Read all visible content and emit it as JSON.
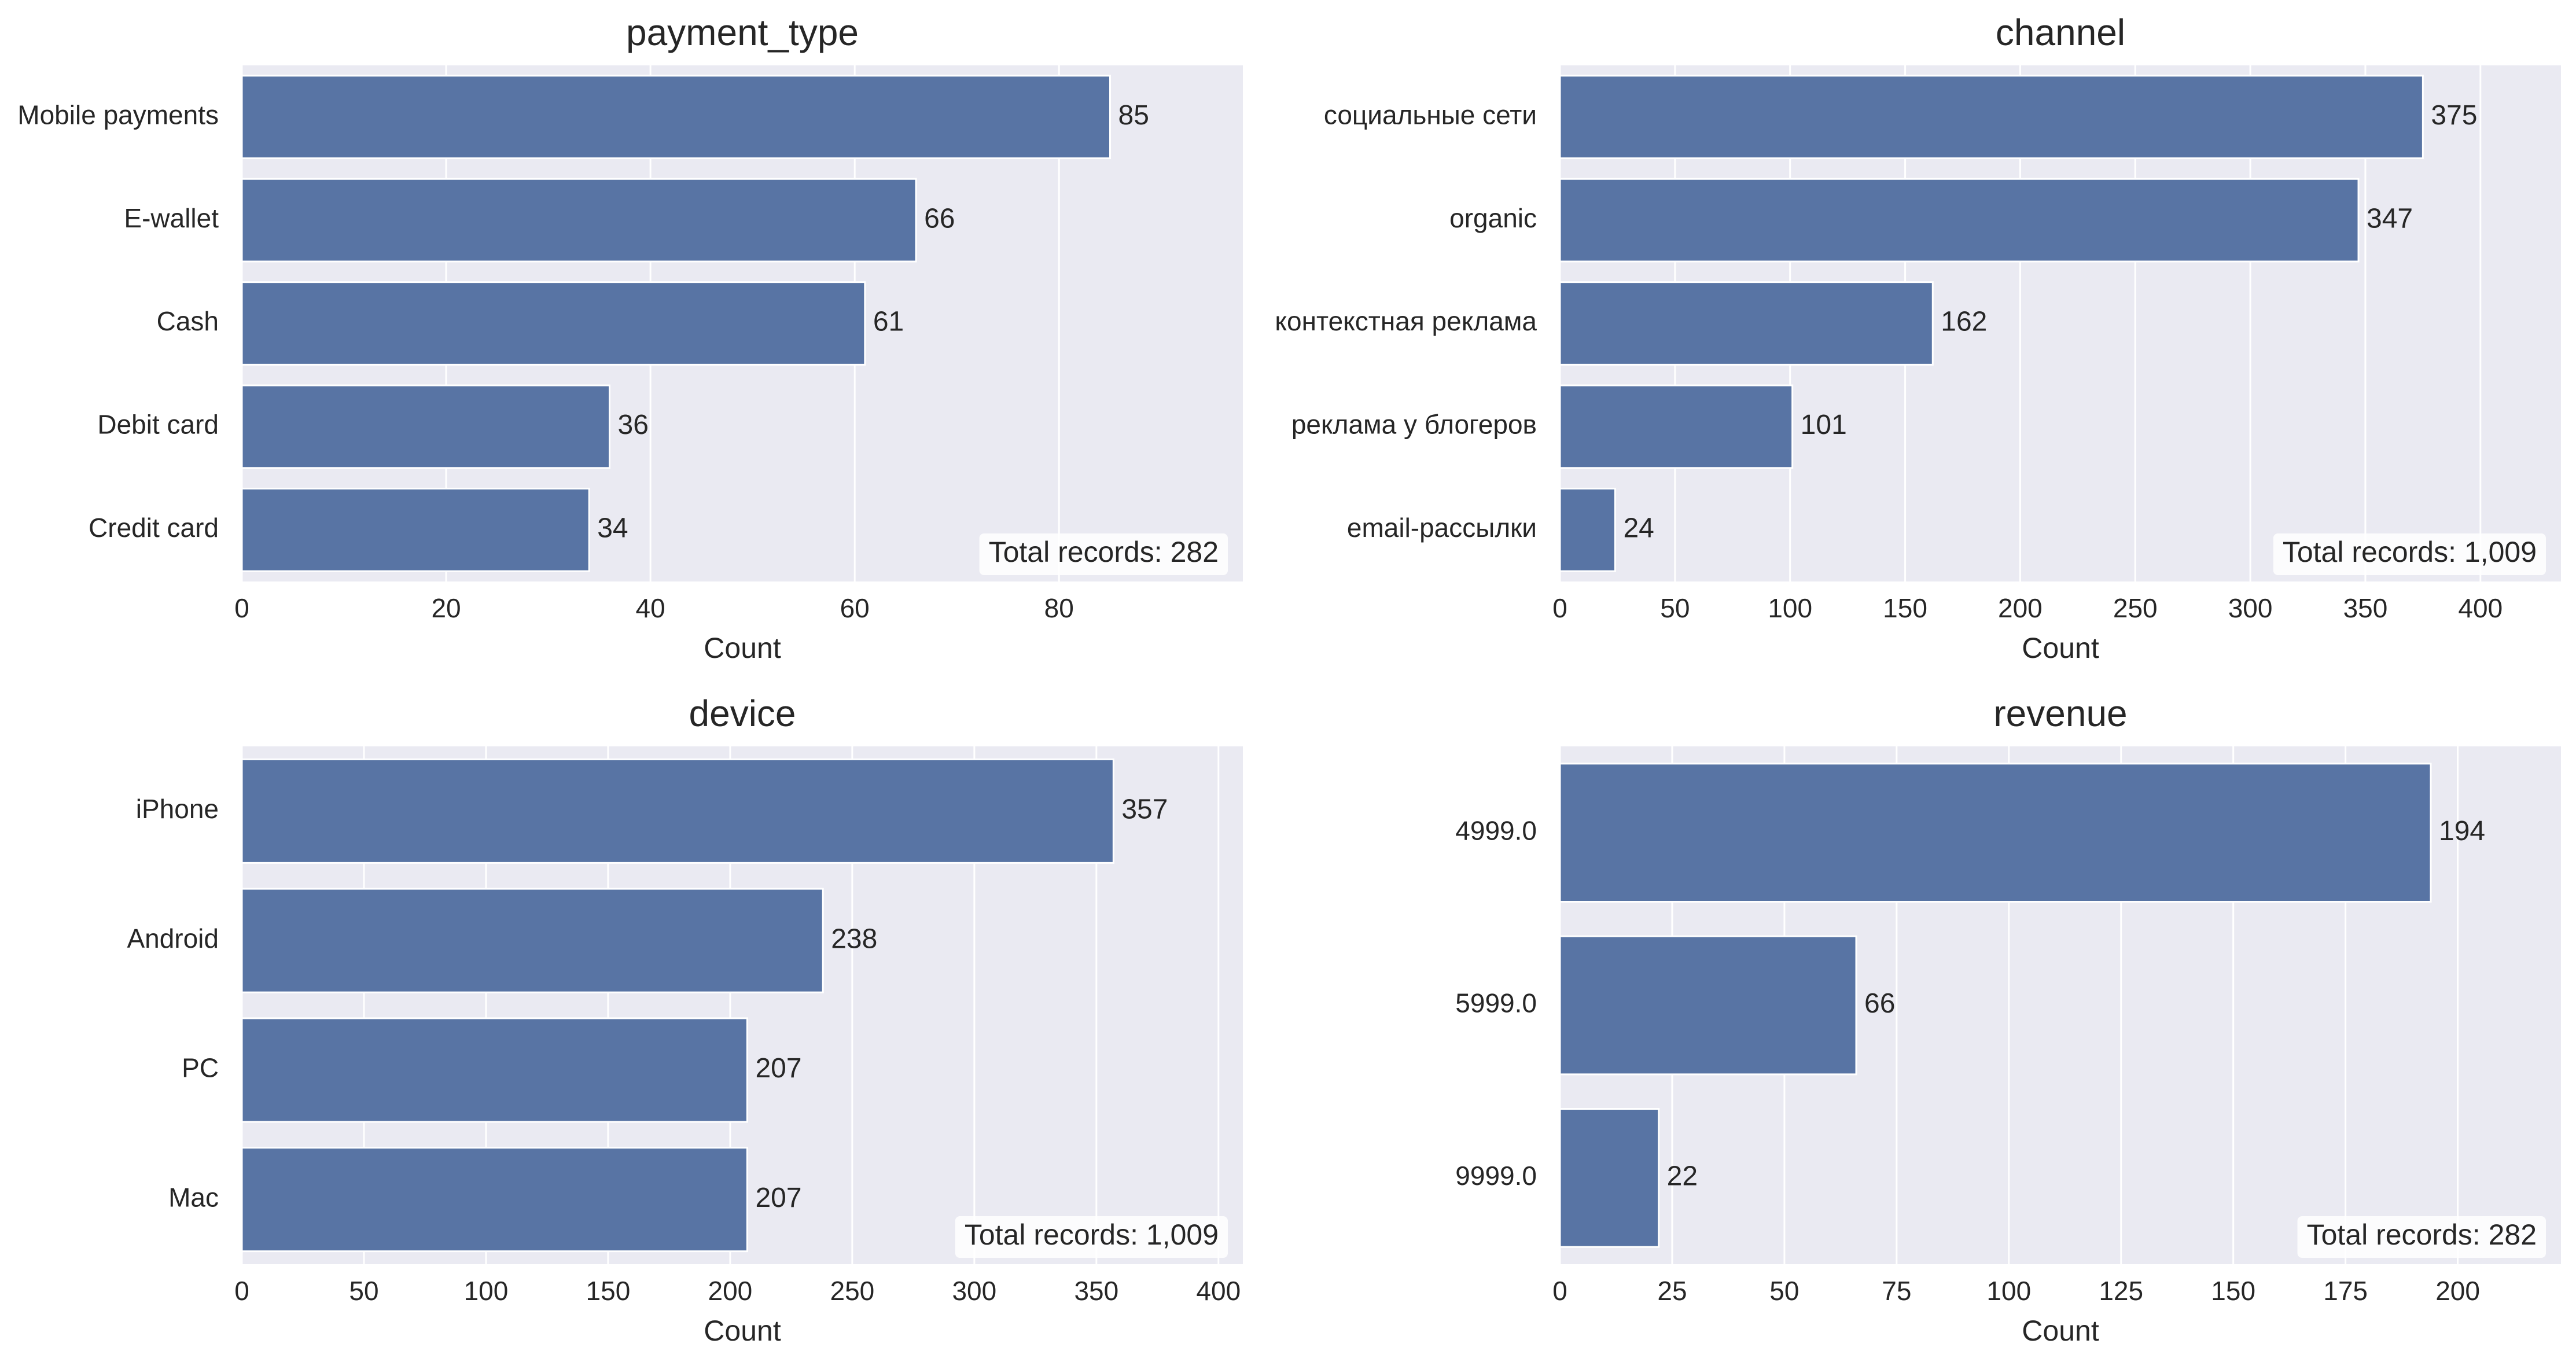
{
  "chart_data": [
    {
      "type": "bar",
      "orientation": "horizontal",
      "title": "payment_type",
      "xlabel": "Count",
      "ylabel": "",
      "categories": [
        "Mobile payments",
        "E-wallet",
        "Cash",
        "Debit card",
        "Credit card"
      ],
      "values": [
        85,
        66,
        61,
        36,
        34
      ],
      "xlim": [
        0,
        98
      ],
      "xticks": [
        0,
        20,
        40,
        60,
        80
      ],
      "annotation": "Total records: 282",
      "grid": true
    },
    {
      "type": "bar",
      "orientation": "horizontal",
      "title": "channel",
      "xlabel": "Count",
      "ylabel": "",
      "categories": [
        "социальные сети",
        "organic",
        "контекстная реклама",
        "реклама у блогеров",
        "email-рассылки"
      ],
      "values": [
        375,
        347,
        162,
        101,
        24
      ],
      "xlim": [
        0,
        435
      ],
      "xticks": [
        0,
        50,
        100,
        150,
        200,
        250,
        300,
        350,
        400
      ],
      "annotation": "Total records: 1,009",
      "grid": true
    },
    {
      "type": "bar",
      "orientation": "horizontal",
      "title": "device",
      "xlabel": "Count",
      "ylabel": "",
      "categories": [
        "iPhone",
        "Android",
        "PC",
        "Mac"
      ],
      "values": [
        357,
        238,
        207,
        207
      ],
      "xlim": [
        0,
        410
      ],
      "xticks": [
        0,
        50,
        100,
        150,
        200,
        250,
        300,
        350,
        400
      ],
      "annotation": "Total records: 1,009",
      "grid": true
    },
    {
      "type": "bar",
      "orientation": "horizontal",
      "title": "revenue",
      "xlabel": "Count",
      "ylabel": "",
      "categories": [
        "4999.0",
        "5999.0",
        "9999.0"
      ],
      "values": [
        194,
        66,
        22
      ],
      "xlim": [
        0,
        223
      ],
      "xticks": [
        0,
        25,
        50,
        75,
        100,
        125,
        150,
        175,
        200
      ],
      "annotation": "Total records: 282",
      "grid": true
    }
  ],
  "colors": {
    "bar": "#5874a4",
    "plot_background": "#eaeaf2",
    "grid": "#ffffff",
    "text": "#262626"
  }
}
